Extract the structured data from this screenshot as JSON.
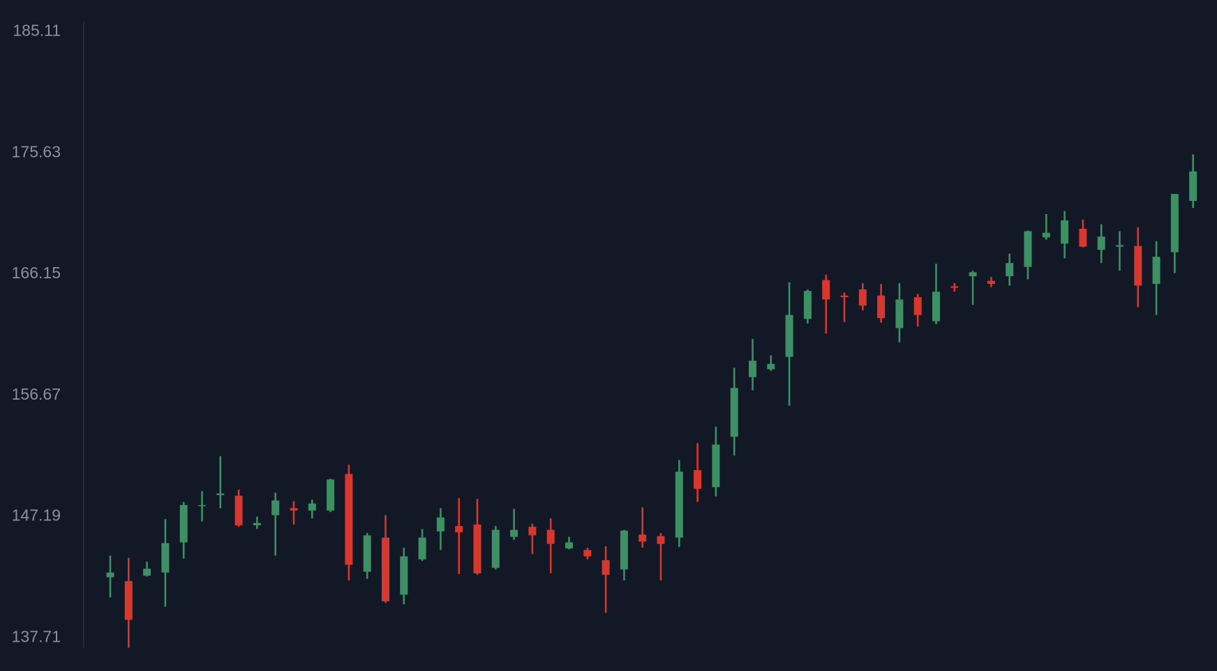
{
  "chart_data": {
    "type": "candlestick",
    "up_color": "#3d8f64",
    "down_color": "#d6372f",
    "ylim": [
      137.71,
      185.11
    ],
    "yticks": [
      137.71,
      147.19,
      156.67,
      166.15,
      175.63,
      185.11
    ],
    "open": [
      142.44,
      142.14,
      142.57,
      142.81,
      145.17,
      148.03,
      148.87,
      148.82,
      146.51,
      147.3,
      147.85,
      147.66,
      147.66,
      150.52,
      142.87,
      145.54,
      141.08,
      143.84,
      146.03,
      146.45,
      146.57,
      143.17,
      145.6,
      146.39,
      146.15,
      144.69,
      144.57,
      143.78,
      143.05,
      145.78,
      145.66,
      145.54,
      150.82,
      149.49,
      153.43,
      158.1,
      158.71,
      159.68,
      162.65,
      165.69,
      164.48,
      164.96,
      164.48,
      161.93,
      164.35,
      162.47,
      165.2,
      165.99,
      165.63,
      165.99,
      166.72,
      169.03,
      168.54,
      169.7,
      168.06,
      168.3,
      168.36,
      165.39,
      167.87,
      171.88
    ],
    "high": [
      144.14,
      143.96,
      143.66,
      146.99,
      148.33,
      149.18,
      151.91,
      149.3,
      147.18,
      149.06,
      148.39,
      148.51,
      150.15,
      151.24,
      145.9,
      147.3,
      144.75,
      146.21,
      147.85,
      148.63,
      148.57,
      146.45,
      147.79,
      146.63,
      147.05,
      145.6,
      144.75,
      144.87,
      146.15,
      147.91,
      145.9,
      151.61,
      152.94,
      154.22,
      158.83,
      161.08,
      159.8,
      165.51,
      164.96,
      166.11,
      164.72,
      165.45,
      165.39,
      165.45,
      164.6,
      166.96,
      165.45,
      166.42,
      165.93,
      167.75,
      169.57,
      170.85,
      171.09,
      170.42,
      170.06,
      169.51,
      169.82,
      168.72,
      172.43,
      175.52
    ],
    "low": [
      140.87,
      136.92,
      142.5,
      140.14,
      143.9,
      146.81,
      147.85,
      146.39,
      146.21,
      144.14,
      146.57,
      147.05,
      147.54,
      142.2,
      142.32,
      140.44,
      140.32,
      143.72,
      144.57,
      142.69,
      142.63,
      143.05,
      145.36,
      144.26,
      142.75,
      144.63,
      143.84,
      139.66,
      142.2,
      144.75,
      142.2,
      144.81,
      148.33,
      148.76,
      151.97,
      157.07,
      158.59,
      155.86,
      162.29,
      161.5,
      162.41,
      163.32,
      162.35,
      160.83,
      162.05,
      162.23,
      164.78,
      163.75,
      165.14,
      165.26,
      165.75,
      168.85,
      167.39,
      168.24,
      167.02,
      166.42,
      163.56,
      162.96,
      166.23,
      171.33
    ],
    "close": [
      142.81,
      139.11,
      143.11,
      145.11,
      148.09,
      148.09,
      149.0,
      146.51,
      146.69,
      148.45,
      147.66,
      148.21,
      150.09,
      143.42,
      145.72,
      140.56,
      144.08,
      145.54,
      147.12,
      145.96,
      142.75,
      146.15,
      146.15,
      145.72,
      145.05,
      145.17,
      144.08,
      142.63,
      146.09,
      145.23,
      145.05,
      150.7,
      149.36,
      152.82,
      157.25,
      159.38,
      159.13,
      162.96,
      164.84,
      164.17,
      164.35,
      163.69,
      162.71,
      164.17,
      162.96,
      164.78,
      165.08,
      166.3,
      165.39,
      167.02,
      169.51,
      169.39,
      170.36,
      168.3,
      169.09,
      168.42,
      165.26,
      167.51,
      172.43,
      174.19
    ]
  }
}
